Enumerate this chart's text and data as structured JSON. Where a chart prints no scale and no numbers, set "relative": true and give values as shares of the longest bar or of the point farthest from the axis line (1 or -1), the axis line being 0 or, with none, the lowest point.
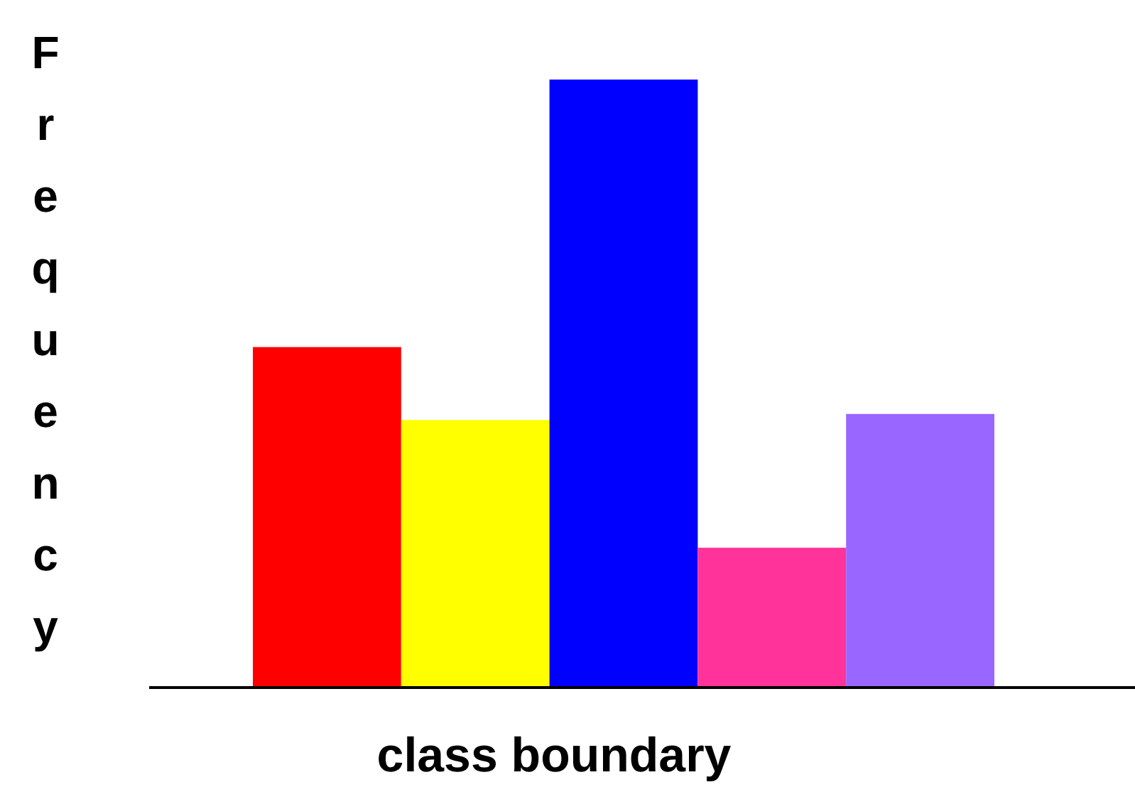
{
  "chart_data": {
    "type": "bar",
    "xlabel": "class boundary",
    "ylabel": "Frequency",
    "relative": true,
    "categories": [
      null,
      null,
      null,
      null,
      null
    ],
    "values": [
      0.56,
      0.44,
      1,
      0.23,
      0.45
    ],
    "colors": [
      "#ff0000",
      "#ffff00",
      "#0000ff",
      "#ff3399",
      "#9966ff"
    ]
  }
}
